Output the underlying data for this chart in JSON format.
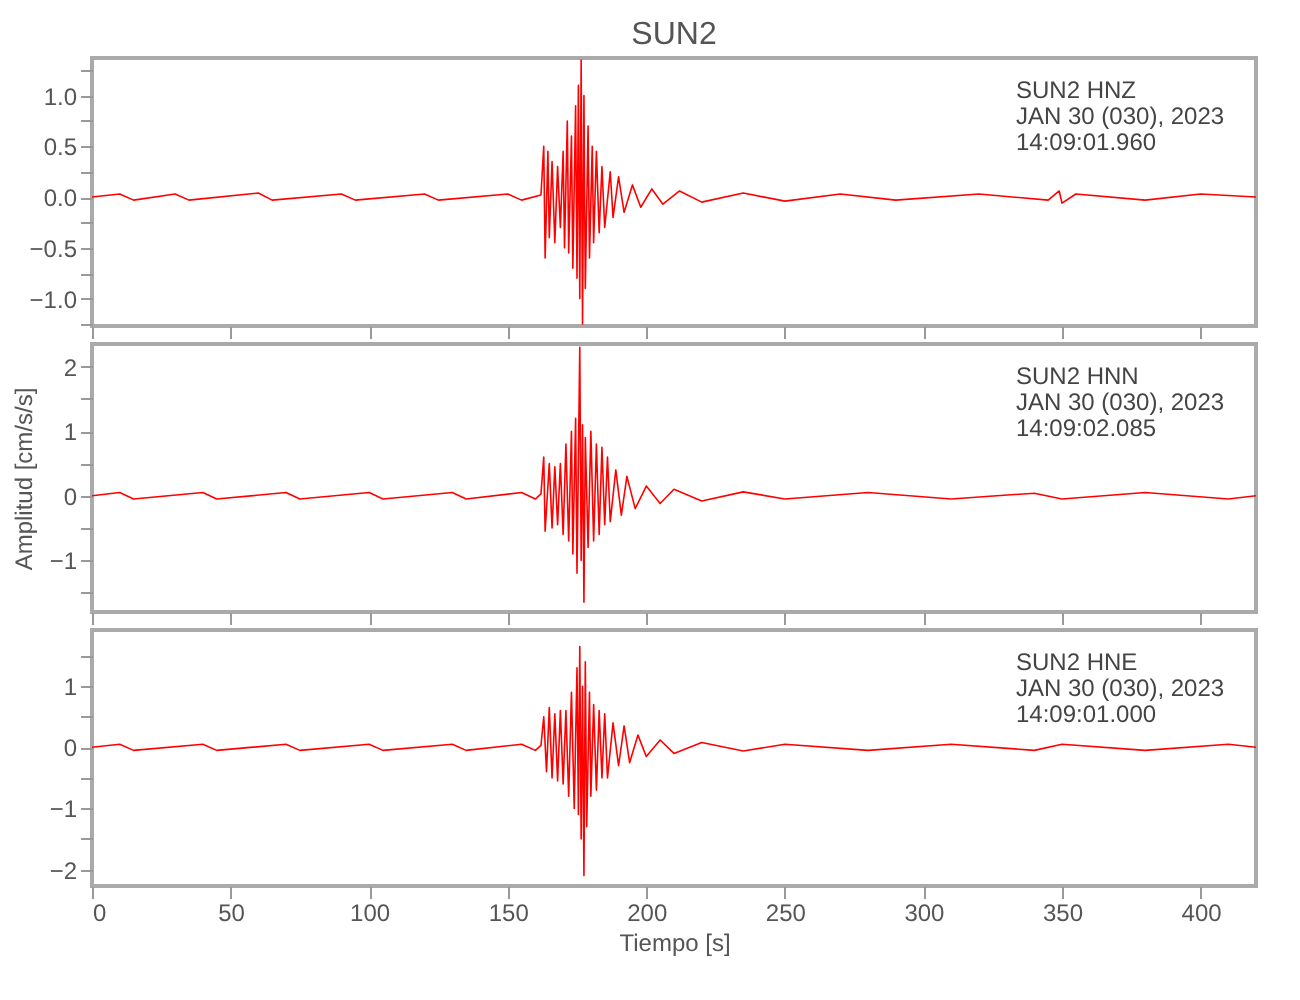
{
  "chart_data": [
    {
      "type": "line",
      "title": "SUN2",
      "tick_labels": "y",
      "xlim": [
        0,
        420
      ],
      "xticks": [
        0,
        50,
        100,
        150,
        200,
        250,
        300,
        350,
        400
      ],
      "ylim": [
        -1.27,
        1.37
      ],
      "yticks": [
        {
          "value": -1.25,
          "label": null
        },
        {
          "value": -1,
          "label": "−1.0"
        },
        {
          "value": -0.75,
          "label": null
        },
        {
          "value": -0.5,
          "label": "−0.5"
        },
        {
          "value": -0.25,
          "label": null
        },
        {
          "value": 0,
          "label": "0.0"
        },
        {
          "value": 0.25,
          "label": null
        },
        {
          "value": 0.5,
          "label": "0.5"
        },
        {
          "value": 0.75,
          "label": null
        },
        {
          "value": 1,
          "label": "1.0"
        },
        {
          "value": 1.25,
          "label": null
        }
      ],
      "annotations": [
        "SUN2   HNZ",
        "JAN 30 (030), 2023",
        "14:09:01.960"
      ],
      "x": [
        0,
        10,
        15,
        30,
        35,
        60,
        65,
        90,
        95,
        120,
        125,
        150,
        155,
        162,
        163,
        163.5,
        164.5,
        165,
        166,
        167,
        168,
        169,
        170,
        170.5,
        171.5,
        172,
        173,
        173.5,
        174.5,
        175,
        175.5,
        176,
        176.5,
        177,
        177.5,
        178,
        179,
        179.5,
        180.5,
        181,
        182,
        183,
        184,
        185,
        187,
        188,
        190,
        192,
        195,
        198,
        202,
        206,
        212,
        220,
        235,
        250,
        270,
        290,
        320,
        345,
        349,
        350,
        355,
        380,
        400,
        420
      ],
      "series": [
        {
          "color": "#ff0000",
          "values": [
            0,
            0.03,
            -0.03,
            0.03,
            -0.03,
            0.04,
            -0.03,
            0.03,
            -0.03,
            0.03,
            -0.03,
            0.03,
            -0.03,
            0.02,
            0.5,
            -0.6,
            0.45,
            -0.4,
            0.35,
            -0.45,
            0.3,
            -0.3,
            0.45,
            -0.5,
            0.75,
            -0.55,
            0.6,
            -0.7,
            0.9,
            -0.8,
            1.1,
            -1.0,
            1.35,
            -1.25,
            1.0,
            -0.9,
            0.7,
            -0.6,
            0.5,
            -0.45,
            0.45,
            -0.35,
            0.3,
            -0.3,
            0.25,
            -0.2,
            0.2,
            -0.15,
            0.12,
            -0.1,
            0.08,
            -0.07,
            0.06,
            -0.05,
            0.04,
            -0.04,
            0.03,
            -0.03,
            0.03,
            -0.03,
            0.06,
            -0.06,
            0.03,
            -0.03,
            0.03,
            0
          ]
        }
      ]
    },
    {
      "type": "line",
      "ylabel": "Amplitud [cm/s/s]",
      "tick_labels": "y",
      "xlim": [
        0,
        420
      ],
      "xticks": [
        0,
        50,
        100,
        150,
        200,
        250,
        300,
        350,
        400
      ],
      "ylim": [
        -1.8,
        2.35
      ],
      "yticks": [
        {
          "value": -1.5,
          "label": null
        },
        {
          "value": -1,
          "label": "−1"
        },
        {
          "value": -0.5,
          "label": null
        },
        0,
        {
          "value": 0.5,
          "label": null
        },
        1,
        {
          "value": 1.5,
          "label": null
        },
        2
      ],
      "annotations": [
        "SUN2   HNN",
        "JAN 30 (030), 2023",
        "14:09:02.085"
      ],
      "x": [
        0,
        10,
        15,
        40,
        45,
        70,
        75,
        100,
        105,
        130,
        135,
        155,
        160,
        162,
        163,
        163.5,
        165,
        166,
        167,
        168,
        169,
        170,
        171,
        172,
        173,
        173.5,
        174.5,
        175,
        176,
        176.5,
        177,
        177.5,
        178,
        179,
        180,
        181,
        182,
        183,
        184,
        185,
        186,
        187,
        189,
        191,
        193,
        196,
        200,
        205,
        210,
        220,
        235,
        250,
        280,
        310,
        340,
        350,
        380,
        410,
        420
      ],
      "series": [
        {
          "color": "#ff0000",
          "values": [
            0,
            0.05,
            -0.05,
            0.05,
            -0.05,
            0.05,
            -0.05,
            0.05,
            -0.05,
            0.05,
            -0.05,
            0.05,
            -0.05,
            0.03,
            0.6,
            -0.55,
            0.5,
            -0.5,
            0.45,
            -0.45,
            0.5,
            -0.6,
            0.8,
            -0.7,
            1.0,
            -0.9,
            1.2,
            -1.2,
            2.3,
            -1.0,
            1.1,
            -1.65,
            0.9,
            -0.8,
            1.0,
            -0.7,
            0.8,
            -0.6,
            0.75,
            -0.45,
            0.6,
            -0.4,
            0.4,
            -0.3,
            0.3,
            -0.2,
            0.15,
            -0.12,
            0.1,
            -0.08,
            0.06,
            -0.05,
            0.05,
            -0.05,
            0.04,
            -0.05,
            0.05,
            -0.05,
            0
          ]
        }
      ]
    },
    {
      "type": "line",
      "xlabel": "Tiempo [s]",
      "xlim": [
        0,
        420
      ],
      "xticks": [
        0,
        50,
        100,
        150,
        200,
        250,
        300,
        350,
        400
      ],
      "ylim": [
        -2.27,
        1.92
      ],
      "yticks": [
        {
          "value": -2,
          "label": "−2"
        },
        {
          "value": -1.5,
          "label": null
        },
        {
          "value": -1,
          "label": "−1"
        },
        {
          "value": -0.5,
          "label": null
        },
        0,
        {
          "value": 0.5,
          "label": null
        },
        1,
        {
          "value": 1.5,
          "label": null
        }
      ],
      "annotations": [
        "SUN2   HNE",
        "JAN 30 (030), 2023",
        "14:09:01.000"
      ],
      "x": [
        0,
        10,
        15,
        40,
        45,
        70,
        75,
        100,
        105,
        130,
        135,
        155,
        160,
        162,
        163,
        164,
        165,
        166,
        167,
        168,
        169,
        170,
        171,
        172,
        173,
        174,
        175,
        175.5,
        176,
        176.5,
        177,
        177.5,
        178,
        178.5,
        179.5,
        180,
        181,
        182,
        183,
        184,
        185,
        186,
        188,
        190,
        192,
        194,
        197,
        200,
        205,
        210,
        220,
        235,
        250,
        280,
        310,
        340,
        350,
        380,
        410,
        420
      ],
      "series": [
        {
          "color": "#ff0000",
          "values": [
            0,
            0.05,
            -0.05,
            0.05,
            -0.05,
            0.05,
            -0.05,
            0.05,
            -0.05,
            0.05,
            -0.05,
            0.05,
            -0.05,
            0.03,
            0.5,
            -0.4,
            0.65,
            -0.5,
            0.55,
            -0.55,
            0.6,
            -0.6,
            0.6,
            -0.8,
            0.9,
            -1.0,
            1.3,
            -1.1,
            1.65,
            -1.5,
            1.0,
            -2.1,
            1.4,
            -1.3,
            0.9,
            -0.8,
            0.7,
            -0.7,
            0.6,
            -0.5,
            0.55,
            -0.5,
            0.4,
            -0.3,
            0.35,
            -0.25,
            0.2,
            -0.15,
            0.12,
            -0.1,
            0.08,
            -0.06,
            0.05,
            -0.05,
            0.05,
            -0.05,
            0.05,
            -0.05,
            0.05,
            0
          ]
        }
      ]
    }
  ]
}
